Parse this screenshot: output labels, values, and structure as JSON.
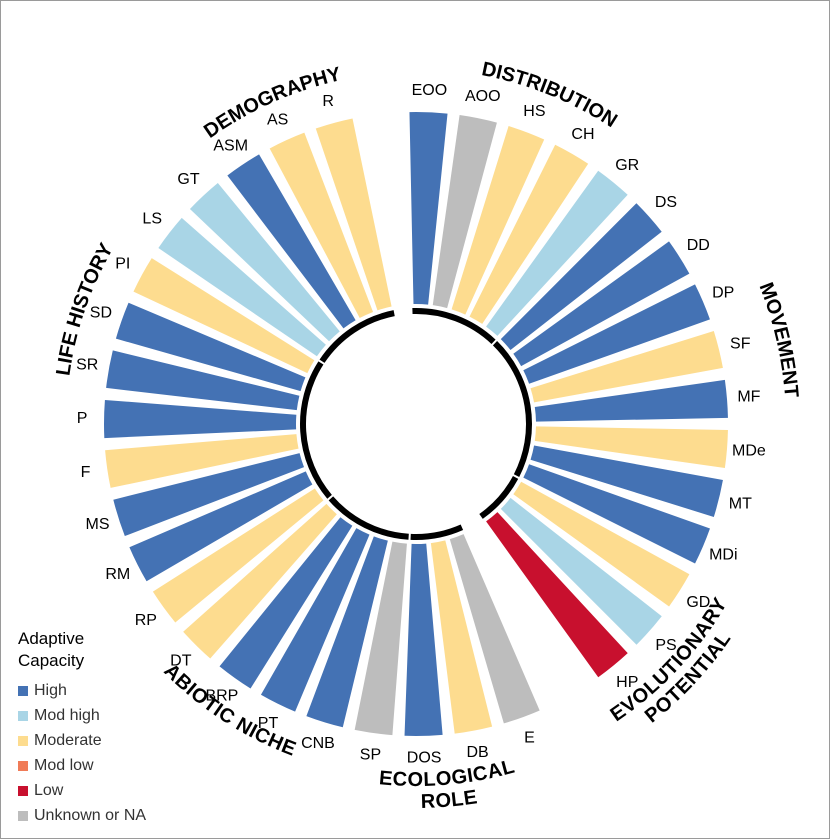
{
  "legend": {
    "title": "Adaptive Capacity",
    "items": [
      {
        "key": "high",
        "label": "High"
      },
      {
        "key": "modhigh",
        "label": "Mod high"
      },
      {
        "key": "moderate",
        "label": "Moderate"
      },
      {
        "key": "modlow",
        "label": "Mod low"
      },
      {
        "key": "low",
        "label": "Low"
      },
      {
        "key": "unknown",
        "label": "Unknown or NA"
      }
    ]
  },
  "colors": {
    "high": "#4472b4",
    "modhigh": "#a9d5e6",
    "moderate": "#fddc8f",
    "modlow": "#f07b57",
    "low": "#c8102e",
    "unknown": "#bdbdbd"
  },
  "chart_data": {
    "type": "radial bar",
    "groups": [
      {
        "name": "DISTRIBUTION",
        "categories": [
          "EOO",
          "AOO",
          "HS",
          "CH",
          "GR"
        ]
      },
      {
        "name": "MOVEMENT",
        "categories": [
          "DS",
          "DD",
          "DP",
          "SF",
          "MF",
          "MDe",
          "MT",
          "MDi"
        ]
      },
      {
        "name": "EVOLUTIONARY POTENTIAL",
        "categories": [
          "GD",
          "PS",
          "HP"
        ]
      },
      {
        "name": "ECOLOGICAL ROLE",
        "categories": [
          "E",
          "DB",
          "DOS"
        ]
      },
      {
        "name": "ABIOTIC NICHE",
        "categories": [
          "SP",
          "CNB",
          "PT",
          "BRP",
          "DT"
        ]
      },
      {
        "name": "LIFE HISTORY",
        "categories": [
          "RP",
          "RM",
          "MS",
          "F",
          "P",
          "SR",
          "SD",
          "PI"
        ]
      },
      {
        "name": "DEMOGRAPHY",
        "categories": [
          "LS",
          "GT",
          "ASM",
          "AS",
          "R"
        ]
      }
    ],
    "bars": [
      {
        "label": "EOO",
        "group": "DISTRIBUTION",
        "capacity": "high"
      },
      {
        "label": "AOO",
        "group": "DISTRIBUTION",
        "capacity": "unknown"
      },
      {
        "label": "HS",
        "group": "DISTRIBUTION",
        "capacity": "moderate"
      },
      {
        "label": "CH",
        "group": "DISTRIBUTION",
        "capacity": "moderate"
      },
      {
        "label": "GR",
        "group": "DISTRIBUTION",
        "capacity": "modhigh"
      },
      {
        "label": "DS",
        "group": "MOVEMENT",
        "capacity": "high"
      },
      {
        "label": "DD",
        "group": "MOVEMENT",
        "capacity": "high"
      },
      {
        "label": "DP",
        "group": "MOVEMENT",
        "capacity": "high"
      },
      {
        "label": "SF",
        "group": "MOVEMENT",
        "capacity": "moderate"
      },
      {
        "label": "MF",
        "group": "MOVEMENT",
        "capacity": "high"
      },
      {
        "label": "MDe",
        "group": "MOVEMENT",
        "capacity": "moderate"
      },
      {
        "label": "MT",
        "group": "MOVEMENT",
        "capacity": "high"
      },
      {
        "label": "MDi",
        "group": "MOVEMENT",
        "capacity": "high"
      },
      {
        "label": "GD",
        "group": "EVOLUTIONARY POTENTIAL",
        "capacity": "moderate"
      },
      {
        "label": "PS",
        "group": "EVOLUTIONARY POTENTIAL",
        "capacity": "modhigh"
      },
      {
        "label": "HP",
        "group": "EVOLUTIONARY POTENTIAL",
        "capacity": "low"
      },
      {
        "label": "E",
        "group": "ECOLOGICAL ROLE",
        "capacity": "unknown"
      },
      {
        "label": "DB",
        "group": "ECOLOGICAL ROLE",
        "capacity": "moderate"
      },
      {
        "label": "DOS",
        "group": "ECOLOGICAL ROLE",
        "capacity": "high"
      },
      {
        "label": "SP",
        "group": "ABIOTIC NICHE",
        "capacity": "unknown"
      },
      {
        "label": "CNB",
        "group": "ABIOTIC NICHE",
        "capacity": "high"
      },
      {
        "label": "PT",
        "group": "ABIOTIC NICHE",
        "capacity": "high"
      },
      {
        "label": "BRP",
        "group": "ABIOTIC NICHE",
        "capacity": "high"
      },
      {
        "label": "DT",
        "group": "ABIOTIC NICHE",
        "capacity": "moderate"
      },
      {
        "label": "RP",
        "group": "LIFE HISTORY",
        "capacity": "moderate"
      },
      {
        "label": "RM",
        "group": "LIFE HISTORY",
        "capacity": "high"
      },
      {
        "label": "MS",
        "group": "LIFE HISTORY",
        "capacity": "high"
      },
      {
        "label": "F",
        "group": "LIFE HISTORY",
        "capacity": "moderate"
      },
      {
        "label": "P",
        "group": "LIFE HISTORY",
        "capacity": "high"
      },
      {
        "label": "SR",
        "group": "LIFE HISTORY",
        "capacity": "high"
      },
      {
        "label": "SD",
        "group": "LIFE HISTORY",
        "capacity": "high"
      },
      {
        "label": "PI",
        "group": "LIFE HISTORY",
        "capacity": "moderate"
      },
      {
        "label": "LS",
        "group": "DEMOGRAPHY",
        "capacity": "modhigh"
      },
      {
        "label": "GT",
        "group": "DEMOGRAPHY",
        "capacity": "modhigh"
      },
      {
        "label": "ASM",
        "group": "DEMOGRAPHY",
        "capacity": "high"
      },
      {
        "label": "AS",
        "group": "DEMOGRAPHY",
        "capacity": "moderate"
      },
      {
        "label": "R",
        "group": "DEMOGRAPHY",
        "capacity": "moderate"
      }
    ]
  }
}
